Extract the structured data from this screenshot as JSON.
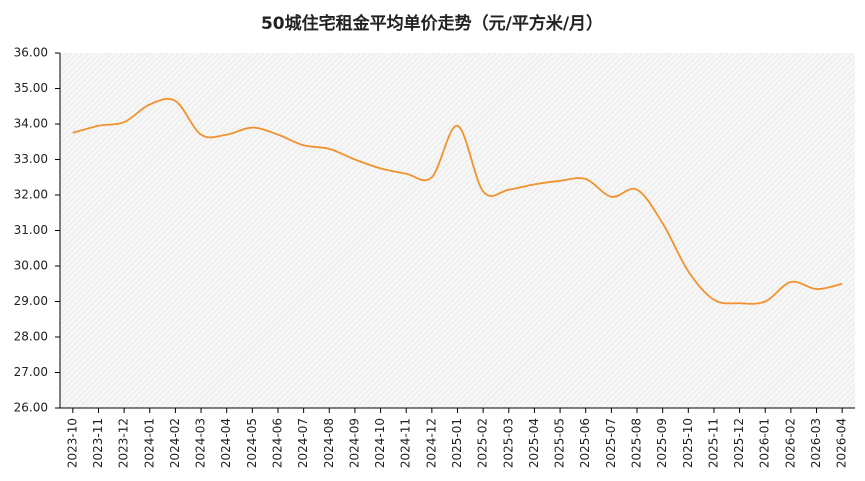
{
  "chart_data": {
    "type": "line",
    "title": "50城住宅租金平均单价走势（元/平方米/月）",
    "categories": [
      "2023-10",
      "2023-11",
      "2023-12",
      "2024-01",
      "2024-02",
      "2024-03",
      "2024-04",
      "2024-05",
      "2024-06",
      "2024-07",
      "2024-08",
      "2024-09",
      "2024-10",
      "2024-11",
      "2024-12",
      "2025-01",
      "2025-02",
      "2025-03",
      "2025-04",
      "2025-05",
      "2025-06",
      "2025-07",
      "2025-08",
      "2025-09",
      "2025-10",
      "2025-11",
      "2025-12",
      "2026-01",
      "2026-02",
      "2026-03",
      "2026-04"
    ],
    "values": [
      33.75,
      33.95,
      34.05,
      34.55,
      34.65,
      33.7,
      33.7,
      33.9,
      33.7,
      33.4,
      33.3,
      33.0,
      32.75,
      32.6,
      32.5,
      33.95,
      32.1,
      32.15,
      32.3,
      32.4,
      32.45,
      31.95,
      32.15,
      31.2,
      29.85,
      29.05,
      28.95,
      29.0,
      29.55,
      29.35,
      29.5
    ],
    "color": "#f0922e",
    "ylim": [
      26,
      36
    ],
    "yticks": [
      {
        "value": 26,
        "label": "26.00"
      },
      {
        "value": 27,
        "label": "27.00"
      },
      {
        "value": 28,
        "label": "28.00"
      },
      {
        "value": 29,
        "label": "29.00"
      },
      {
        "value": 30,
        "label": "30.00"
      },
      {
        "value": 31,
        "label": "31.00"
      },
      {
        "value": 32,
        "label": "32.00"
      },
      {
        "value": 33,
        "label": "33.00"
      },
      {
        "value": 34,
        "label": "34.00"
      },
      {
        "value": 35,
        "label": "35.00"
      },
      {
        "value": 36,
        "label": "36.00"
      }
    ]
  }
}
